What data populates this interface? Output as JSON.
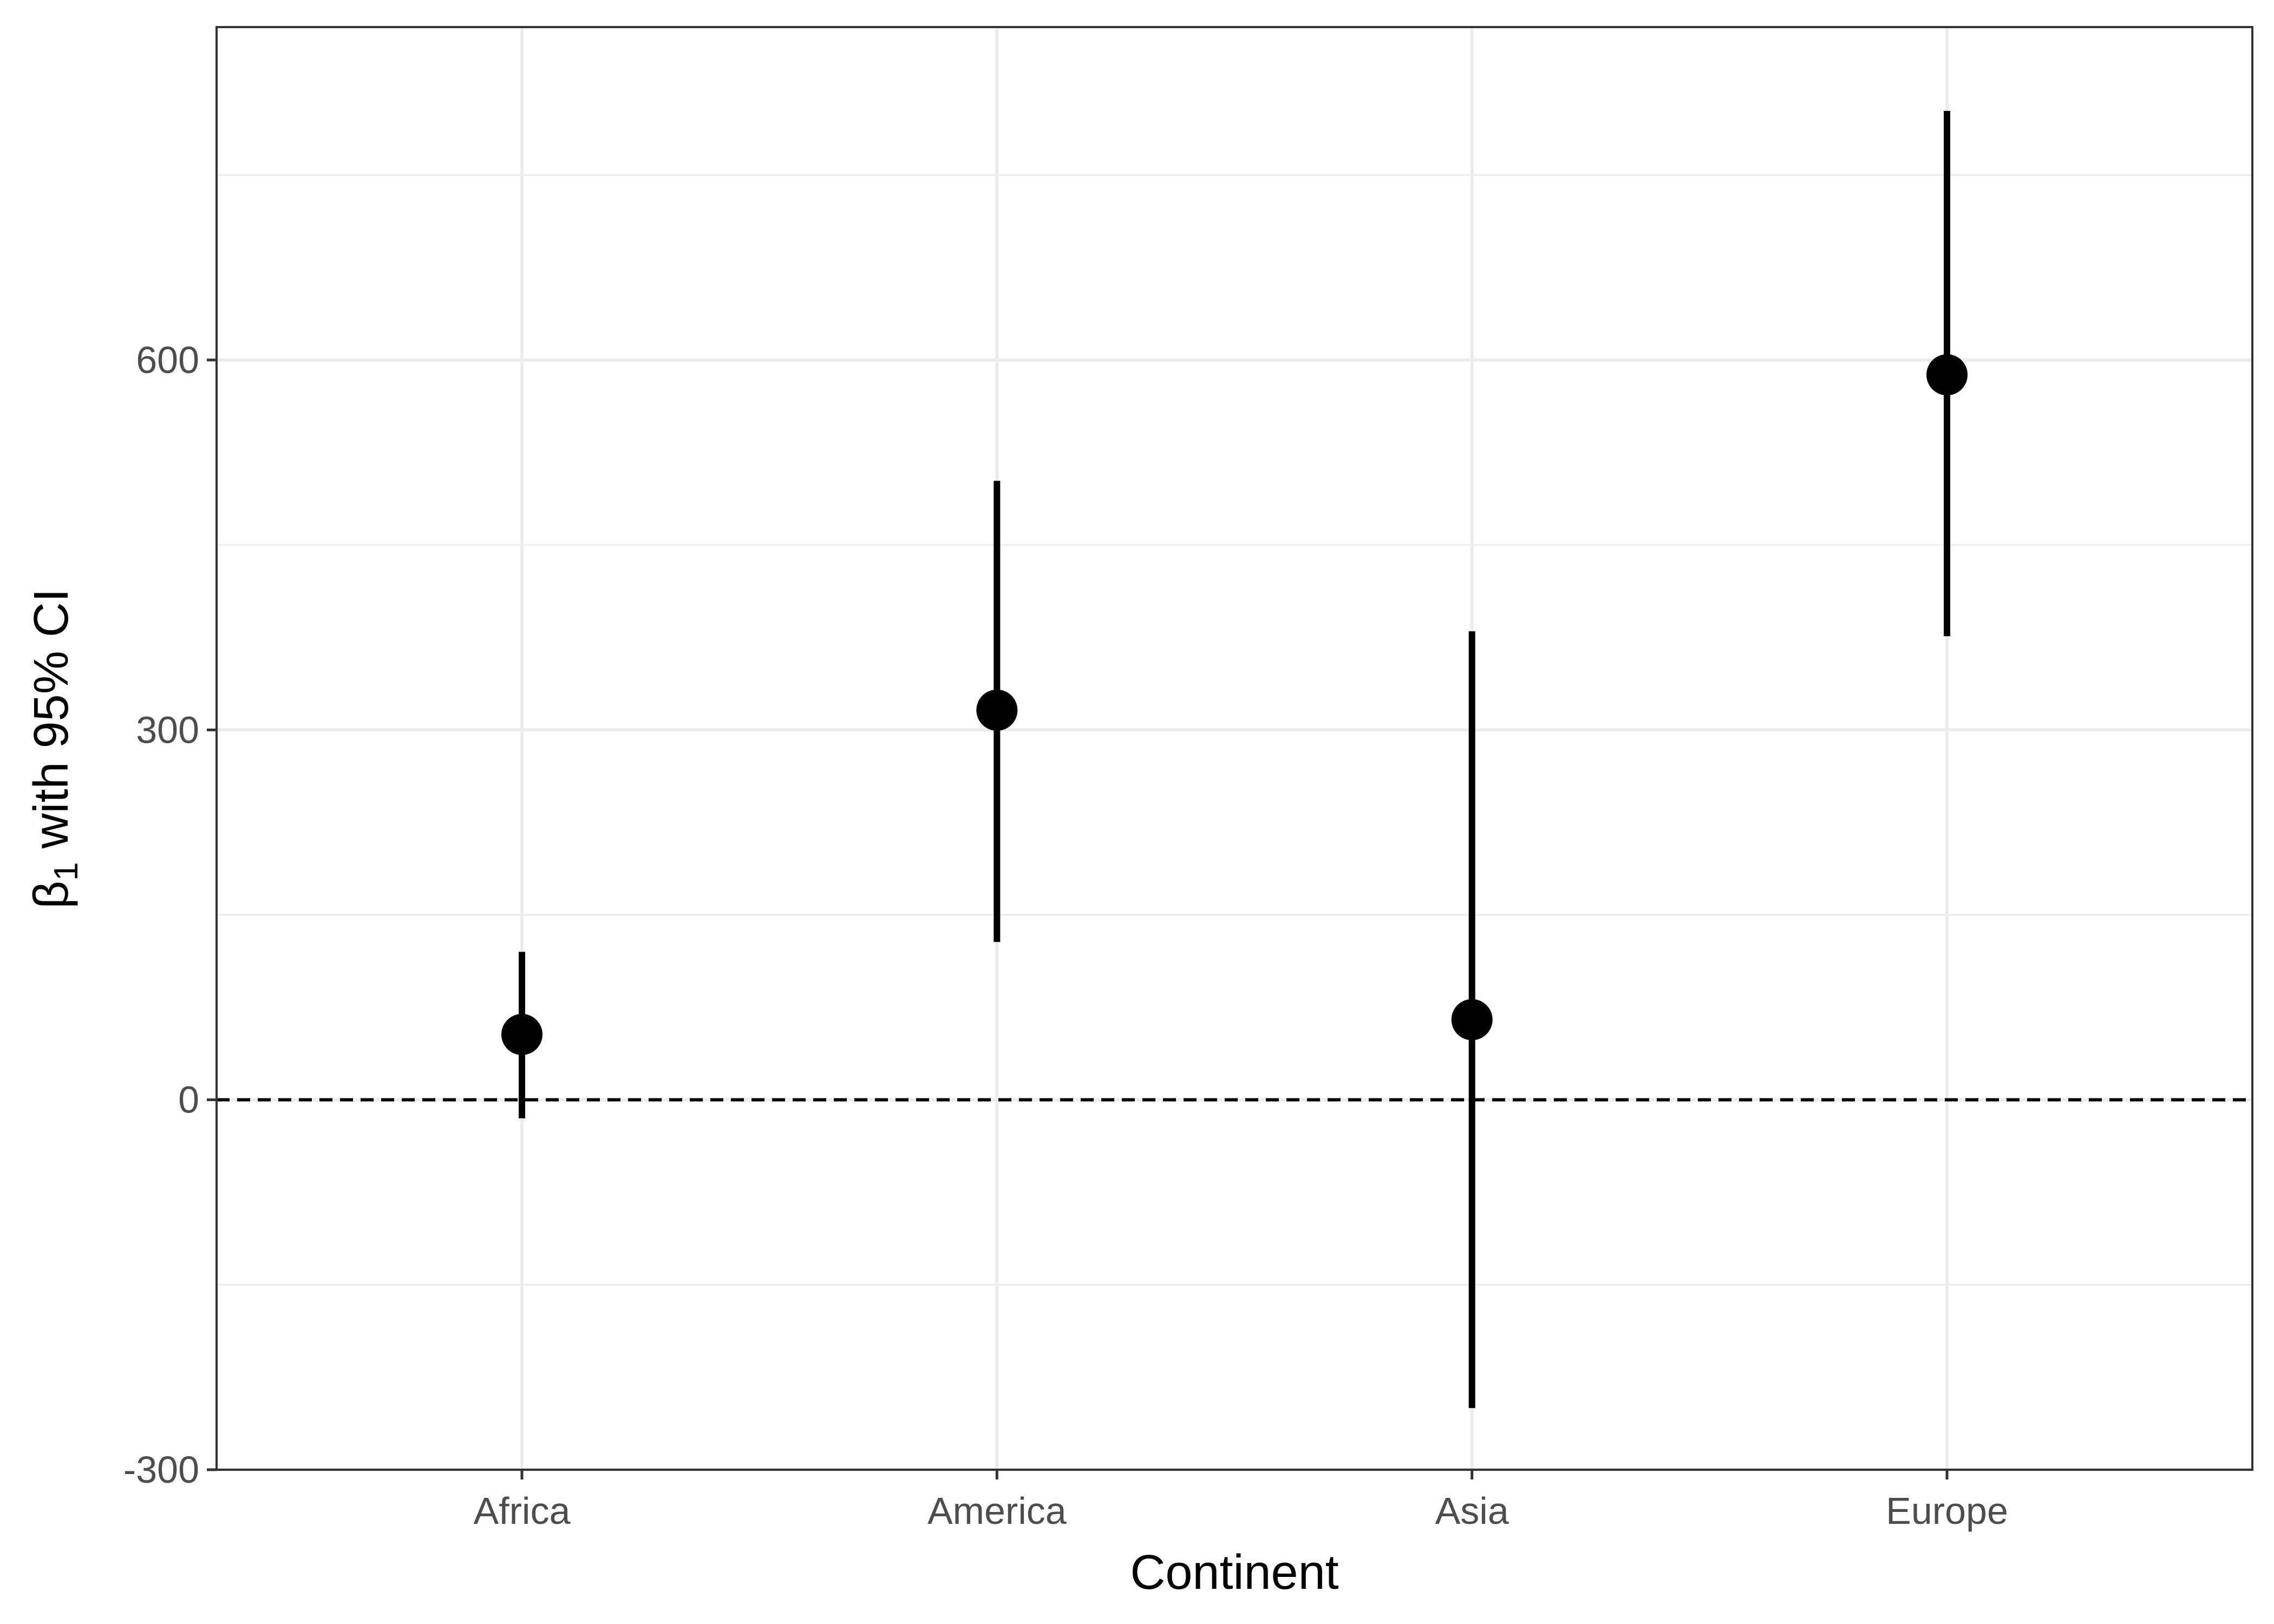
{
  "chart_data": {
    "type": "scatter",
    "categories": [
      "Africa",
      "America",
      "Asia",
      "Europe"
    ],
    "estimates": [
      53,
      316,
      65,
      588
    ],
    "ci_lower": [
      -15,
      128,
      -250,
      376
    ],
    "ci_upper": [
      120,
      502,
      380,
      802
    ],
    "xlabel": "Continent",
    "ylabel_symbol": "β",
    "ylabel_subscript": "1",
    "ylabel_rest": " with 95% CI",
    "ylim": [
      -300,
      870
    ],
    "yticks": [
      -300,
      0,
      300,
      600
    ],
    "yticks_minor": [
      -150,
      150,
      450,
      750
    ],
    "reference_line": 0,
    "grid": true,
    "theme": "bw",
    "colors": {
      "point": "#000000",
      "errorbar": "#000000",
      "grid": "#ebebeb",
      "panel_border": "#333333",
      "reference_line": "#000000"
    }
  }
}
